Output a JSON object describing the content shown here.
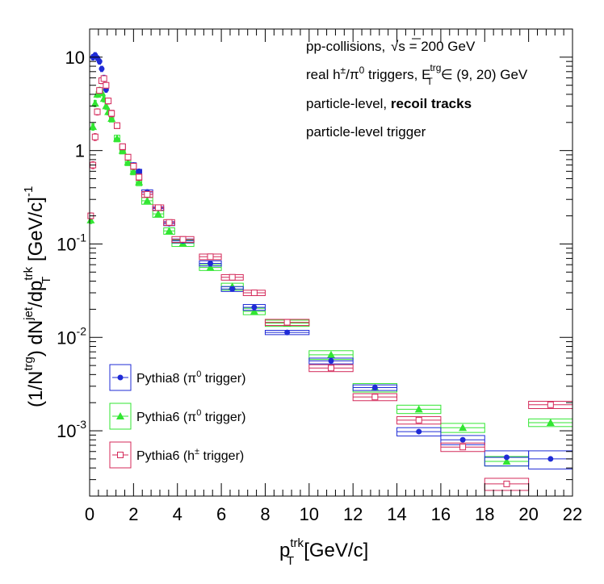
{
  "chart_data": {
    "type": "scatter",
    "xlabel": "p_T^{trk} [GeV/c]",
    "ylabel": "(1/N^{trg}) dN^{jet}/dp_T^{trk} [GeV/c]^{-1}",
    "xlim": [
      0,
      22
    ],
    "ylim": [
      0.0002,
      20
    ],
    "y_scale": "log",
    "grid": false,
    "x_ticks": [
      "0",
      "2",
      "4",
      "6",
      "8",
      "10",
      "12",
      "14",
      "16",
      "18",
      "20",
      "22"
    ],
    "y_ticks": [
      "10^{-3}",
      "10^{-2}",
      "10^{-1}",
      "1",
      "10"
    ],
    "annotations": [
      "pp-collisions, √s = 200 GeV",
      "real h^{±}/π^{0} triggers, E_T^{trg} ∈ (9, 20) GeV",
      "particle-level, recoil tracks",
      "particle-level trigger"
    ],
    "legend_position": "lower-left",
    "series": [
      {
        "name": "Pythia8 (π^{0} trigger)",
        "color": "#1f2bd6",
        "marker": "filled-circle",
        "x": [
          0.15,
          0.25,
          0.35,
          0.45,
          0.55,
          0.65,
          0.75,
          0.85,
          1.0,
          1.25,
          1.5,
          1.75,
          2.0,
          2.25,
          2.625,
          3.125,
          3.625,
          4.25,
          5.5,
          6.5,
          7.5,
          9.0,
          11.0,
          13.0,
          15.0,
          17.0,
          19.0,
          21.0
        ],
        "xerr": [
          0.05,
          0.05,
          0.05,
          0.05,
          0.05,
          0.05,
          0.05,
          0.05,
          0.1,
          0.125,
          0.125,
          0.125,
          0.125,
          0.125,
          0.25,
          0.25,
          0.25,
          0.5,
          0.5,
          0.5,
          0.5,
          1,
          1,
          1,
          1,
          1,
          1,
          1
        ],
        "y": [
          10.0,
          10.5,
          9.8,
          9.0,
          7.5,
          6.0,
          4.5,
          3.4,
          2.5,
          1.85,
          1.1,
          0.85,
          0.7,
          0.6,
          0.36,
          0.24,
          0.165,
          0.108,
          0.062,
          0.033,
          0.021,
          0.0113,
          0.0056,
          0.0029,
          0.00098,
          0.0008,
          0.00052,
          0.0005
        ],
        "box_lo": [
          9.3,
          9.8,
          9.2,
          8.4,
          7.0,
          5.6,
          4.2,
          3.2,
          2.35,
          1.75,
          1.04,
          0.8,
          0.66,
          0.57,
          0.34,
          0.23,
          0.157,
          0.103,
          0.058,
          0.031,
          0.0195,
          0.0107,
          0.0052,
          0.0027,
          0.00088,
          0.00071,
          0.00042,
          0.00039
        ],
        "box_hi": [
          10.7,
          11.2,
          10.4,
          9.6,
          8.0,
          6.4,
          4.8,
          3.6,
          2.65,
          1.95,
          1.16,
          0.9,
          0.74,
          0.63,
          0.38,
          0.25,
          0.173,
          0.113,
          0.066,
          0.035,
          0.0225,
          0.0119,
          0.006,
          0.0031,
          0.00108,
          0.00089,
          0.00061,
          0.00061
        ]
      },
      {
        "name": "Pythia6 (π^{0} trigger)",
        "color": "#32e632",
        "marker": "filled-triangle",
        "x": [
          0.05,
          0.15,
          0.25,
          0.35,
          0.45,
          0.55,
          0.65,
          0.75,
          0.85,
          1.0,
          1.25,
          1.5,
          1.75,
          2.0,
          2.25,
          2.625,
          3.125,
          3.625,
          4.25,
          5.5,
          6.5,
          7.5,
          9.0,
          11.0,
          13.0,
          15.0,
          17.0,
          19.0,
          21.0
        ],
        "xerr": [
          0.05,
          0.05,
          0.05,
          0.05,
          0.05,
          0.05,
          0.05,
          0.05,
          0.05,
          0.1,
          0.125,
          0.125,
          0.125,
          0.125,
          0.125,
          0.25,
          0.25,
          0.25,
          0.5,
          0.5,
          0.5,
          0.5,
          1,
          1,
          1,
          1,
          1,
          1,
          1
        ],
        "y": [
          0.18,
          1.8,
          3.2,
          4.0,
          4.4,
          4.2,
          3.6,
          3.0,
          2.6,
          2.2,
          1.35,
          1.0,
          0.75,
          0.6,
          0.46,
          0.29,
          0.21,
          0.138,
          0.102,
          0.056,
          0.035,
          0.019,
          0.0142,
          0.0065,
          0.0029,
          0.0017,
          0.00108,
          0.00047,
          0.00122
        ],
        "box_lo": [
          0.165,
          1.65,
          2.95,
          3.7,
          4.05,
          3.85,
          3.3,
          2.75,
          2.4,
          2.02,
          1.24,
          0.92,
          0.69,
          0.55,
          0.42,
          0.266,
          0.193,
          0.127,
          0.094,
          0.052,
          0.032,
          0.0175,
          0.0131,
          0.0058,
          0.0026,
          0.00153,
          0.00096,
          0.00042,
          0.00111
        ],
        "box_hi": [
          0.195,
          1.95,
          3.45,
          4.3,
          4.75,
          4.55,
          3.9,
          3.25,
          2.8,
          2.38,
          1.46,
          1.08,
          0.81,
          0.65,
          0.5,
          0.314,
          0.227,
          0.149,
          0.11,
          0.06,
          0.038,
          0.0205,
          0.0153,
          0.0072,
          0.0032,
          0.00188,
          0.0012,
          0.00053,
          0.00134
        ]
      },
      {
        "name": "Pythia6 (h^{±} trigger)",
        "color": "#d42a5a",
        "marker": "open-square",
        "x": [
          0.05,
          0.15,
          0.25,
          0.35,
          0.45,
          0.55,
          0.65,
          0.75,
          0.85,
          1.0,
          1.25,
          1.5,
          1.75,
          2.0,
          2.25,
          2.625,
          3.125,
          3.625,
          4.25,
          5.5,
          6.5,
          7.5,
          9.0,
          11.0,
          13.0,
          15.0,
          17.0,
          19.0,
          21.0
        ],
        "xerr": [
          0.05,
          0.05,
          0.05,
          0.05,
          0.05,
          0.05,
          0.05,
          0.05,
          0.05,
          0.1,
          0.125,
          0.125,
          0.125,
          0.125,
          0.125,
          0.25,
          0.25,
          0.25,
          0.5,
          0.5,
          0.5,
          0.5,
          1,
          1,
          1,
          1,
          1,
          1,
          1
        ],
        "y": [
          0.2,
          0.7,
          1.4,
          2.6,
          4.4,
          5.6,
          5.9,
          5.0,
          3.4,
          2.5,
          1.85,
          1.1,
          0.85,
          0.68,
          0.52,
          0.34,
          0.245,
          0.17,
          0.112,
          0.073,
          0.044,
          0.03,
          0.0145,
          0.0047,
          0.0023,
          0.0013,
          0.00067,
          0.00027,
          0.0019
        ],
        "box_lo": [
          0.185,
          0.64,
          1.28,
          2.4,
          4.1,
          5.2,
          5.5,
          4.65,
          3.15,
          2.3,
          1.72,
          1.02,
          0.79,
          0.63,
          0.48,
          0.315,
          0.228,
          0.158,
          0.104,
          0.068,
          0.041,
          0.028,
          0.0134,
          0.0043,
          0.0021,
          0.00118,
          0.0006,
          0.00023,
          0.00173
        ],
        "box_hi": [
          0.215,
          0.76,
          1.52,
          2.8,
          4.7,
          6.0,
          6.3,
          5.35,
          3.65,
          2.7,
          1.98,
          1.18,
          0.91,
          0.73,
          0.56,
          0.365,
          0.262,
          0.182,
          0.12,
          0.078,
          0.047,
          0.032,
          0.0156,
          0.0051,
          0.0025,
          0.00142,
          0.00074,
          0.00031,
          0.00207
        ]
      }
    ]
  }
}
